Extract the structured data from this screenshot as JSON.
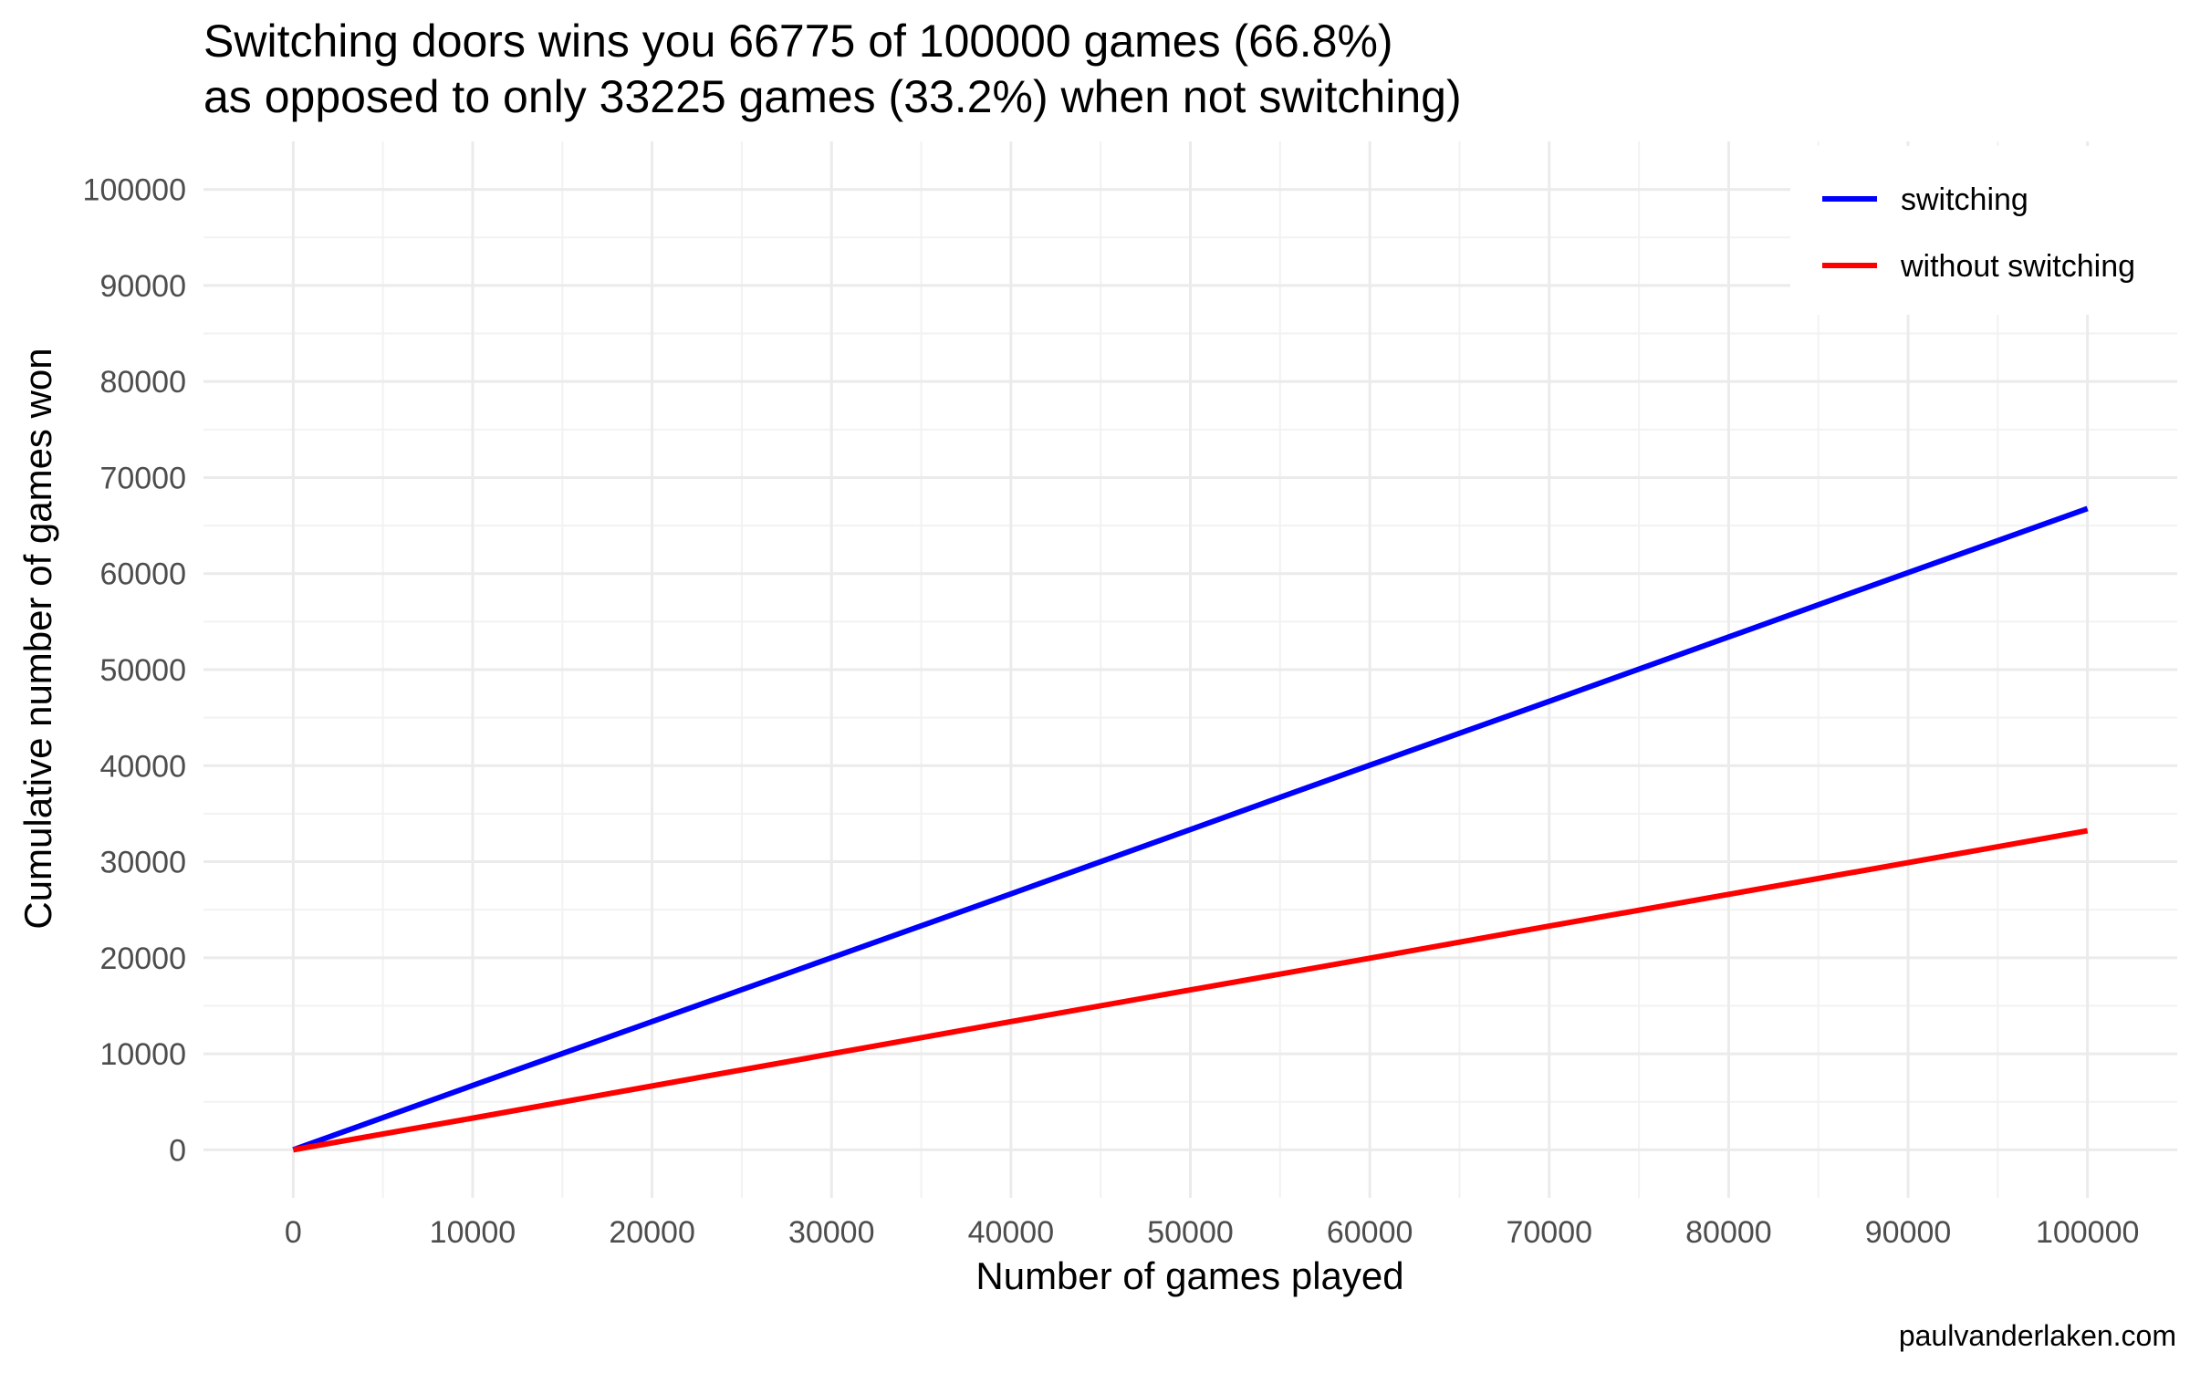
{
  "chart_data": {
    "type": "line",
    "title_line1": "Switching doors wins you 66775 of 100000 games (66.8%)",
    "title_line2": "as opposed to only 33225 games (33.2%) when not switching)",
    "xlabel": "Number of games played",
    "ylabel": "Cumulative number of games won",
    "caption": "paulvanderlaken.com",
    "xlim": [
      -5000,
      105000
    ],
    "ylim": [
      -5000,
      105000
    ],
    "x_ticks": [
      0,
      10000,
      20000,
      30000,
      40000,
      50000,
      60000,
      70000,
      80000,
      90000,
      100000
    ],
    "y_ticks": [
      0,
      10000,
      20000,
      30000,
      40000,
      50000,
      60000,
      70000,
      80000,
      90000,
      100000
    ],
    "x_tick_labels": [
      "0",
      "10000",
      "20000",
      "30000",
      "40000",
      "50000",
      "60000",
      "70000",
      "80000",
      "90000",
      "100000"
    ],
    "y_tick_labels": [
      "0",
      "10000",
      "20000",
      "30000",
      "40000",
      "50000",
      "60000",
      "70000",
      "80000",
      "90000",
      "100000"
    ],
    "grid": true,
    "legend_position": "top-right",
    "series": [
      {
        "name": "switching",
        "color": "#0000ff",
        "x": [
          0,
          10000,
          20000,
          30000,
          40000,
          50000,
          60000,
          70000,
          80000,
          90000,
          100000
        ],
        "y": [
          0,
          6700,
          13350,
          20000,
          26650,
          33350,
          40050,
          46700,
          53400,
          60100,
          66775
        ]
      },
      {
        "name": "without switching",
        "color": "#ff0000",
        "x": [
          0,
          10000,
          20000,
          30000,
          40000,
          50000,
          60000,
          70000,
          80000,
          90000,
          100000
        ],
        "y": [
          0,
          3300,
          6650,
          10000,
          13350,
          16650,
          19950,
          23300,
          26600,
          29900,
          33225
        ]
      }
    ]
  }
}
